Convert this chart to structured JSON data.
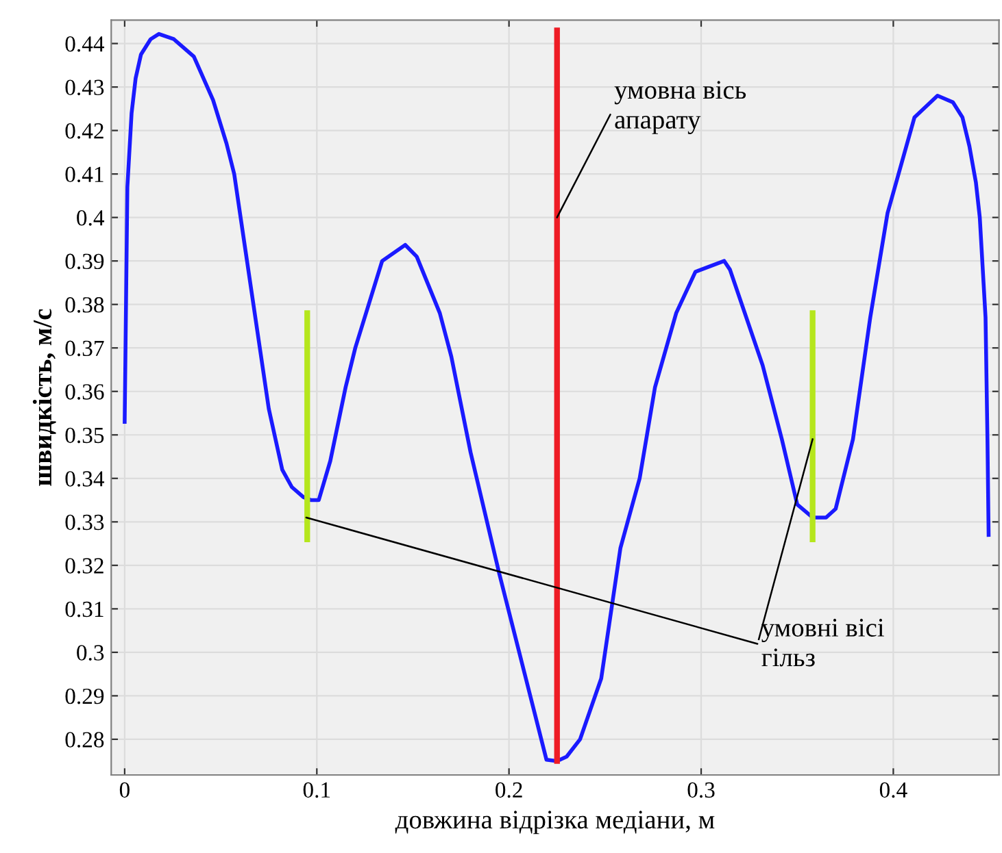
{
  "chart_data": {
    "type": "line",
    "xlabel": "довжина відрізка медіани, м",
    "ylabel": "швидкість, м/с",
    "xlim": [
      -0.007,
      0.455
    ],
    "ylim": [
      0.2718,
      0.4454
    ],
    "xticks": [
      0,
      0.1,
      0.2,
      0.3,
      0.4
    ],
    "yticks": [
      0.28,
      0.29,
      0.3,
      0.31,
      0.32,
      0.33,
      0.34,
      0.35,
      0.36,
      0.37,
      0.38,
      0.39,
      0.4,
      0.41,
      0.42,
      0.43,
      0.44
    ],
    "grid": true,
    "marker": "none",
    "line_style": "solid",
    "series": [
      {
        "color": "#1a1aff",
        "x": [
          0,
          0.0014,
          0.0036,
          0.0057,
          0.0085,
          0.0135,
          0.0178,
          0.0256,
          0.036,
          0.046,
          0.053,
          0.057,
          0.063,
          0.07,
          0.075,
          0.082,
          0.087,
          0.093,
          0.097,
          0.101,
          0.107,
          0.115,
          0.12,
          0.134,
          0.146,
          0.152,
          0.164,
          0.17,
          0.18,
          0.195,
          0.2195,
          0.225,
          0.23,
          0.237,
          0.248,
          0.258,
          0.268,
          0.276,
          0.287,
          0.297,
          0.312,
          0.315,
          0.332,
          0.342,
          0.35,
          0.358,
          0.365,
          0.37,
          0.379,
          0.388,
          0.397,
          0.411,
          0.423,
          0.431,
          0.436,
          0.4396,
          0.443,
          0.445,
          0.448,
          0.449,
          0.4496
        ],
        "values": [
          0.353,
          0.407,
          0.424,
          0.432,
          0.4375,
          0.441,
          0.4422,
          0.441,
          0.437,
          0.427,
          0.417,
          0.41,
          0.392,
          0.371,
          0.356,
          0.342,
          0.338,
          0.3357,
          0.335,
          0.335,
          0.344,
          0.361,
          0.37,
          0.39,
          0.3937,
          0.391,
          0.378,
          0.368,
          0.346,
          0.318,
          0.2753,
          0.275,
          0.276,
          0.28,
          0.294,
          0.324,
          0.34,
          0.361,
          0.378,
          0.3875,
          0.39,
          0.388,
          0.366,
          0.349,
          0.334,
          0.331,
          0.331,
          0.333,
          0.349,
          0.377,
          0.401,
          0.423,
          0.428,
          0.4265,
          0.423,
          0.4164,
          0.408,
          0.4,
          0.377,
          0.349,
          0.327
        ]
      },
      {
        "color": "#ee1c25",
        "x": [
          0.225,
          0.225
        ],
        "values": [
          0.275,
          0.443
        ]
      },
      {
        "color": "#b5e61d",
        "x": [
          0.095,
          0.095
        ],
        "values": [
          0.326,
          0.378
        ]
      },
      {
        "color": "#b5e61d",
        "x": [
          0.358,
          0.358
        ],
        "values": [
          0.326,
          0.378
        ]
      },
      {
        "color": "#000000",
        "x": [
          0.33,
          0.358
        ],
        "values": [
          0.303,
          0.349
        ]
      }
    ],
    "annotations": [
      {
        "text": "умовна вісь\nапарату",
        "x": 0.225,
        "y": 0.4
      },
      {
        "text": "умовні вісі\nгільз",
        "x": 0.0945,
        "y": 0.331
      }
    ]
  }
}
